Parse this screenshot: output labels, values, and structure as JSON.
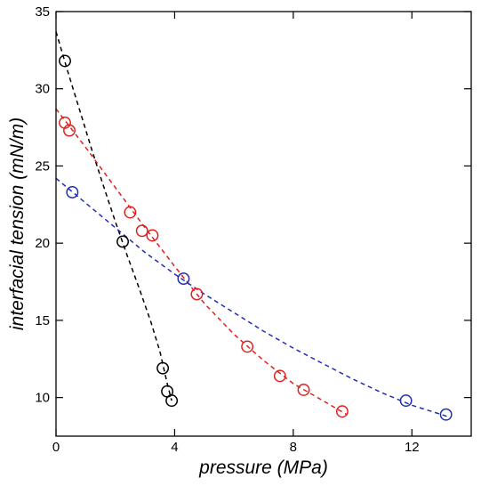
{
  "chart_data": {
    "type": "scatter",
    "title": "",
    "xlabel": "pressure (MPa)",
    "ylabel": "interfacial tension (mN/m)",
    "xlim": [
      0,
      14
    ],
    "ylim": [
      7.5,
      35
    ],
    "x_ticks": [
      0,
      4,
      8,
      12
    ],
    "y_ticks": [
      10,
      15,
      20,
      25,
      30,
      35
    ],
    "grid": false,
    "legend": "none",
    "series": [
      {
        "color": "#000000",
        "marker": "open-circle",
        "points": [
          [
            0.3,
            31.8
          ],
          [
            2.25,
            20.1
          ],
          [
            3.6,
            11.9
          ],
          [
            3.75,
            10.4
          ],
          [
            3.9,
            9.8
          ]
        ],
        "fit": [
          [
            0.0,
            33.7
          ],
          [
            0.4,
            31.1
          ],
          [
            0.8,
            28.6
          ],
          [
            1.2,
            26.1
          ],
          [
            1.6,
            23.7
          ],
          [
            2.0,
            21.4
          ],
          [
            2.4,
            19.2
          ],
          [
            2.8,
            17.1
          ],
          [
            3.2,
            14.9
          ],
          [
            3.5,
            13.0
          ],
          [
            3.75,
            10.9
          ],
          [
            3.9,
            9.8
          ]
        ]
      },
      {
        "color": "#e02020",
        "marker": "open-circle",
        "points": [
          [
            0.3,
            27.8
          ],
          [
            0.45,
            27.3
          ],
          [
            2.5,
            22.0
          ],
          [
            2.9,
            20.8
          ],
          [
            3.25,
            20.5
          ],
          [
            4.75,
            16.7
          ],
          [
            6.45,
            13.3
          ],
          [
            7.55,
            11.4
          ],
          [
            8.35,
            10.5
          ],
          [
            9.65,
            9.1
          ]
        ],
        "fit": [
          [
            0.0,
            28.7
          ],
          [
            1.0,
            26.2
          ],
          [
            2.0,
            23.6
          ],
          [
            3.0,
            21.0
          ],
          [
            4.0,
            18.5
          ],
          [
            5.0,
            16.1
          ],
          [
            6.0,
            14.1
          ],
          [
            7.0,
            12.4
          ],
          [
            8.0,
            10.9
          ],
          [
            9.0,
            9.8
          ],
          [
            9.8,
            8.9
          ]
        ]
      },
      {
        "color": "#1f2fb3",
        "marker": "open-circle",
        "points": [
          [
            0.55,
            23.3
          ],
          [
            4.3,
            17.7
          ],
          [
            11.8,
            9.8
          ],
          [
            13.15,
            8.9
          ]
        ],
        "fit": [
          [
            0.0,
            24.2
          ],
          [
            1.0,
            22.6
          ],
          [
            2.0,
            21.0
          ],
          [
            3.0,
            19.4
          ],
          [
            4.0,
            18.0
          ],
          [
            5.0,
            16.7
          ],
          [
            6.0,
            15.5
          ],
          [
            7.0,
            14.3
          ],
          [
            8.0,
            13.2
          ],
          [
            9.0,
            12.2
          ],
          [
            10.0,
            11.2
          ],
          [
            11.0,
            10.3
          ],
          [
            12.0,
            9.5
          ],
          [
            13.0,
            8.9
          ],
          [
            13.3,
            8.7
          ]
        ]
      }
    ]
  }
}
